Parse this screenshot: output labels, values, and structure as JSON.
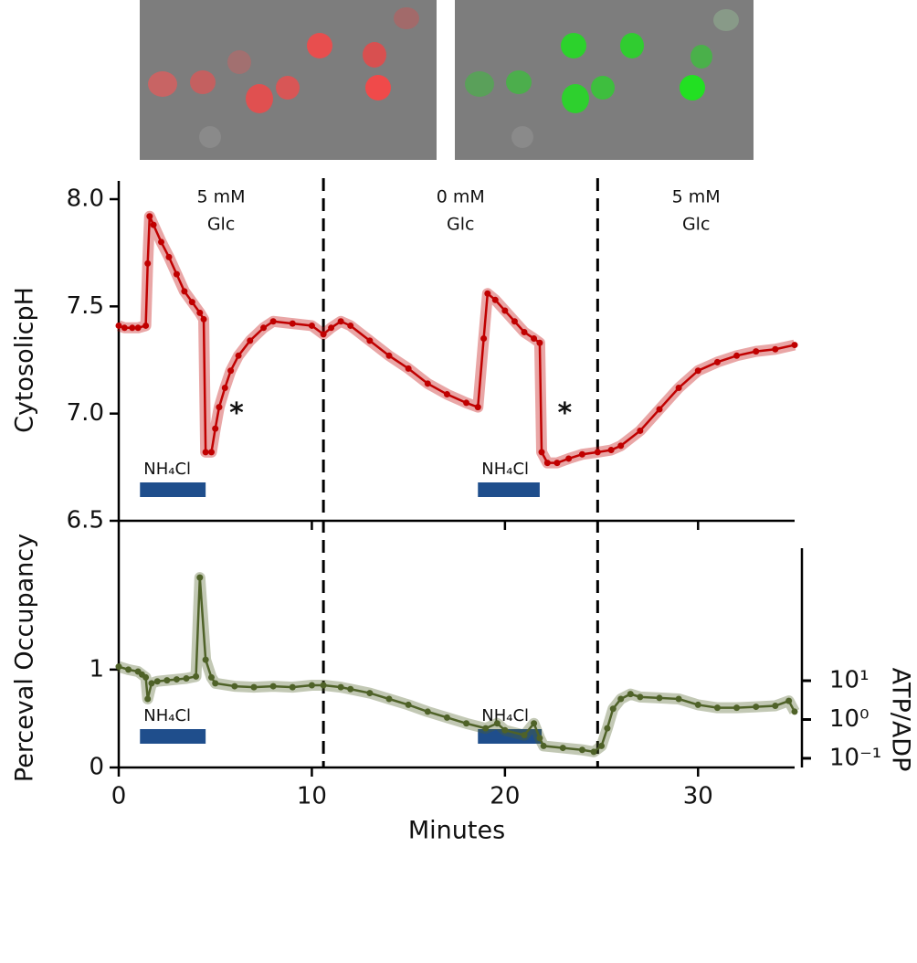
{
  "chart_data": [
    {
      "type": "line",
      "ylabel": "CytosolicpH",
      "xlim": [
        0,
        35
      ],
      "ylim": [
        6.5,
        8.0
      ],
      "yticks": [
        {
          "value": 6.5,
          "label": "6.5"
        },
        {
          "value": 7,
          "label": "7.0"
        },
        {
          "value": 7.5,
          "label": "7.5"
        },
        {
          "value": 8,
          "label": "8.0"
        }
      ],
      "phase_boundaries": [
        10.6,
        24.8
      ],
      "phases": [
        [
          "5 mM",
          "Glc"
        ],
        [
          "0 mM",
          "Glc"
        ],
        [
          "5 mM",
          "Glc"
        ]
      ],
      "treatments": [
        {
          "label": "NH₄Cl",
          "start": 1.1,
          "end": 4.5
        },
        {
          "label": "NH₄Cl",
          "start": 18.6,
          "end": 21.8
        }
      ],
      "annotations": [
        {
          "text": "*",
          "x": 6.1,
          "y": 7.03
        },
        {
          "text": "*",
          "x": 23.1,
          "y": 7.03
        }
      ],
      "series": [
        {
          "color": "#c00000",
          "x": [
            0,
            0.3,
            0.7,
            1.0,
            1.4,
            1.5,
            1.6,
            1.8,
            2.2,
            2.6,
            3.0,
            3.4,
            3.8,
            4.2,
            4.4,
            4.5,
            4.8,
            5.0,
            5.2,
            5.5,
            5.8,
            6.2,
            6.8,
            7.5,
            8.0,
            9.0,
            10.0,
            10.6,
            11.0,
            11.5,
            12,
            13,
            14,
            15,
            16,
            17,
            18,
            18.6,
            18.9,
            19.1,
            19.5,
            20,
            20.5,
            21,
            21.5,
            21.8,
            21.9,
            22.2,
            22.7,
            23.3,
            24,
            24.8,
            25.5,
            26,
            27,
            28,
            29,
            30,
            31,
            32,
            33,
            34,
            35
          ],
          "values": [
            7.41,
            7.4,
            7.4,
            7.4,
            7.41,
            7.7,
            7.92,
            7.88,
            7.8,
            7.73,
            7.65,
            7.57,
            7.52,
            7.47,
            7.44,
            6.82,
            6.82,
            6.93,
            7.03,
            7.12,
            7.2,
            7.27,
            7.34,
            7.4,
            7.43,
            7.42,
            7.41,
            7.37,
            7.4,
            7.43,
            7.41,
            7.34,
            7.27,
            7.21,
            7.14,
            7.09,
            7.05,
            7.03,
            7.35,
            7.56,
            7.53,
            7.48,
            7.43,
            7.38,
            7.35,
            7.33,
            6.82,
            6.77,
            6.77,
            6.79,
            6.81,
            6.82,
            6.83,
            6.85,
            6.92,
            7.02,
            7.12,
            7.2,
            7.24,
            7.27,
            7.29,
            7.3,
            7.32
          ]
        }
      ]
    },
    {
      "type": "line",
      "ylabel": "Perceval Occupancy",
      "xlabel": "Minutes",
      "y2label": "ATP/ADP",
      "xlim": [
        0,
        35
      ],
      "ylim": [
        0,
        2.24
      ],
      "y2lim": [
        0.058,
        26000
      ],
      "y2scale": "log",
      "xticks": [
        0,
        10,
        20,
        30
      ],
      "yticks": [
        0,
        1
      ],
      "y2ticks": [
        {
          "value": 0.1,
          "label": "10⁻¹"
        },
        {
          "value": 1,
          "label": "10⁰"
        },
        {
          "value": 10,
          "label": "10¹"
        }
      ],
      "treatments": [
        {
          "label": "NH₄Cl",
          "start": 1.1,
          "end": 4.5
        },
        {
          "label": "NH₄Cl",
          "start": 18.6,
          "end": 21.9
        }
      ],
      "series": [
        {
          "color": "#4f6228",
          "x": [
            0,
            0.5,
            1,
            1.2,
            1.4,
            1.5,
            1.7,
            2,
            2.5,
            3,
            3.5,
            4,
            4.2,
            4.5,
            4.8,
            5,
            6,
            7,
            8,
            9,
            10,
            10.6,
            11.5,
            12,
            13,
            14,
            15,
            16,
            17,
            18,
            19,
            19.6,
            20,
            21,
            21.5,
            21.8,
            22,
            23,
            24,
            24.6,
            25,
            25.3,
            25.6,
            26,
            26.5,
            27,
            28,
            29,
            30,
            31,
            32,
            33,
            34,
            34.7,
            35
          ],
          "values": [
            1.03,
            1.0,
            0.98,
            0.95,
            0.92,
            0.7,
            0.86,
            0.88,
            0.89,
            0.9,
            0.91,
            0.93,
            1.94,
            1.1,
            0.92,
            0.86,
            0.83,
            0.82,
            0.83,
            0.82,
            0.84,
            0.84,
            0.82,
            0.8,
            0.76,
            0.7,
            0.64,
            0.57,
            0.51,
            0.45,
            0.4,
            0.45,
            0.38,
            0.33,
            0.45,
            0.3,
            0.22,
            0.2,
            0.18,
            0.16,
            0.22,
            0.4,
            0.6,
            0.7,
            0.75,
            0.72,
            0.71,
            0.7,
            0.64,
            0.61,
            0.61,
            0.62,
            0.63,
            0.68,
            0.57
          ]
        }
      ]
    }
  ]
}
